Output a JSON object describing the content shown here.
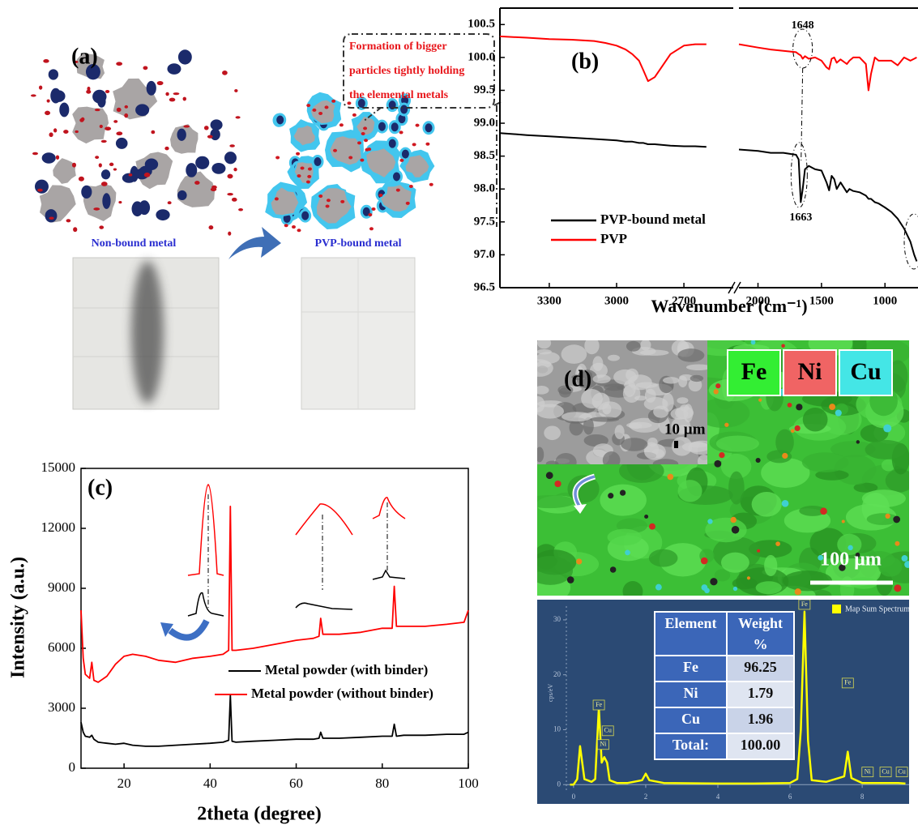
{
  "panel_a": {
    "label": "(a)",
    "callout": [
      "Formation of bigger",
      "particles tightly holding",
      "the elemental metals"
    ],
    "left_caption": "Non-bound metal",
    "right_caption": "PVP-bound metal"
  },
  "panel_d": {
    "label": "(d)",
    "elements": [
      "Fe",
      "Ni",
      "Cu"
    ],
    "scale_small": "10 µm",
    "scale_large": "100 µm"
  },
  "eds_table": {
    "columns": [
      "Element",
      [
        "Weight",
        "%"
      ]
    ],
    "rows": [
      [
        "Fe",
        "96.25"
      ],
      [
        "Ni",
        "1.79"
      ],
      [
        "Cu",
        "1.96"
      ],
      [
        "Total:",
        "100.00"
      ]
    ]
  },
  "chart_data": [
    {
      "type": "line",
      "panel_label": "(b)",
      "x_label": "Wavenumber (cm⁻¹)",
      "x_segments": [
        {
          "xlim": [
            3520,
            2480
          ],
          "xticks": [
            3300,
            3000,
            2700
          ]
        },
        {
          "xlim": [
            2150,
            740
          ],
          "xticks": [
            2000,
            1500,
            1000
          ]
        }
      ],
      "ylim": [
        96.5,
        100.75
      ],
      "yticks": [
        96.5,
        {
          "value": 97,
          "label": "97.0"
        },
        97.5,
        {
          "value": 98,
          "label": "98.0"
        },
        98.5,
        {
          "value": 99,
          "label": "99.0"
        },
        99.5,
        {
          "value": 100,
          "label": "100.0"
        },
        100.5
      ],
      "x": [
        3520,
        3400,
        3300,
        3200,
        3100,
        3050,
        3000,
        2960,
        2930,
        2900,
        2880,
        2860,
        2830,
        2800,
        2760,
        2700,
        2650,
        2600,
        2400,
        2150,
        2000,
        1900,
        1800,
        1700,
        1680,
        1663,
        1648,
        1630,
        1600,
        1550,
        1500,
        1460,
        1440,
        1420,
        1400,
        1380,
        1350,
        1300,
        1280,
        1250,
        1200,
        1150,
        1130,
        1110,
        1080,
        1050,
        1000,
        950,
        900,
        850,
        800,
        770,
        750
      ],
      "series": [
        {
          "name": "PVP-bound metal",
          "color": "#000000",
          "values": [
            98.85,
            98.82,
            98.8,
            98.78,
            98.76,
            98.75,
            98.74,
            98.72,
            98.72,
            98.7,
            98.7,
            98.68,
            98.68,
            98.67,
            98.66,
            98.65,
            98.65,
            98.64,
            null,
            98.6,
            98.58,
            98.55,
            98.55,
            98.52,
            98.45,
            97.8,
            98.0,
            98.3,
            98.35,
            98.3,
            98.28,
            98.1,
            97.98,
            98.2,
            98.15,
            98.0,
            98.1,
            97.95,
            98.0,
            97.97,
            97.95,
            97.9,
            97.85,
            97.85,
            97.8,
            97.78,
            97.72,
            97.65,
            97.55,
            97.4,
            97.2,
            97.0,
            96.9
          ]
        },
        {
          "name": "PVP",
          "color": "#ff0000",
          "values": [
            100.32,
            100.3,
            100.28,
            100.27,
            100.25,
            100.22,
            100.18,
            100.12,
            100.05,
            99.95,
            99.8,
            99.64,
            99.7,
            99.85,
            100.05,
            100.18,
            100.2,
            100.2,
            null,
            100.2,
            100.15,
            100.12,
            100.1,
            100.08,
            100.05,
            100.03,
            99.98,
            100.02,
            99.98,
            100.0,
            99.95,
            99.85,
            99.82,
            99.98,
            100.0,
            99.92,
            99.97,
            99.9,
            99.95,
            100.0,
            100.0,
            99.9,
            99.5,
            99.75,
            100.0,
            99.95,
            99.95,
            99.95,
            99.88,
            100.0,
            99.95,
            99.98,
            100.0
          ]
        }
      ],
      "legend": "lower left",
      "annotations": [
        {
          "text": "1648",
          "x": 1648
        },
        {
          "text": "1663",
          "x": 1663
        }
      ]
    },
    {
      "type": "line",
      "panel_label": "(c)",
      "x_label": "2theta (degree)",
      "y_label": "Intensity (a.u.)",
      "xlim": [
        10,
        100
      ],
      "ylim": [
        0,
        15000
      ],
      "xticks": [
        20,
        40,
        60,
        80,
        100
      ],
      "yticks": [
        0,
        3000,
        6000,
        9000,
        12000,
        15000
      ],
      "x": [
        10,
        10.5,
        11,
        12,
        12.5,
        13,
        14,
        16,
        18,
        20,
        22,
        25,
        28,
        32,
        36,
        40,
        43,
        44.3,
        44.7,
        45.1,
        46,
        50,
        55,
        60,
        64,
        65.3,
        65.7,
        66.2,
        70,
        75,
        80,
        82.3,
        82.8,
        83.3,
        85,
        90,
        95,
        99,
        100
      ],
      "series": [
        {
          "name": "Metal powder (with binder)",
          "color": "#000000",
          "values": [
            2300,
            1800,
            1600,
            1550,
            1650,
            1450,
            1300,
            1250,
            1200,
            1250,
            1150,
            1100,
            1100,
            1150,
            1200,
            1250,
            1300,
            1400,
            3650,
            1350,
            1300,
            1350,
            1400,
            1450,
            1450,
            1500,
            1800,
            1500,
            1500,
            1550,
            1600,
            1600,
            2200,
            1600,
            1650,
            1650,
            1700,
            1700,
            1800
          ]
        },
        {
          "name": "Metal powder (without binder)",
          "color": "#ff0000",
          "values": [
            7900,
            5500,
            4700,
            4500,
            5300,
            4400,
            4300,
            4600,
            5200,
            5600,
            5700,
            5600,
            5400,
            5300,
            5500,
            5600,
            5700,
            5900,
            13100,
            5900,
            5900,
            6000,
            6200,
            6400,
            6500,
            6600,
            7500,
            6700,
            6700,
            6800,
            7000,
            7000,
            9100,
            7100,
            7100,
            7100,
            7200,
            7300,
            7900
          ]
        }
      ],
      "legend": "center right"
    },
    {
      "type": "line",
      "y_label": "cps/eV",
      "xlim": [
        -0.2,
        9.3
      ],
      "ylim": [
        -1,
        32.5
      ],
      "xticks": [
        0,
        2,
        4,
        6,
        8
      ],
      "yticks": [
        0,
        10,
        20,
        30
      ],
      "x": [
        -0.1,
        0,
        0.1,
        0.18,
        0.3,
        0.5,
        0.6,
        0.7,
        0.78,
        0.85,
        0.93,
        1.0,
        1.2,
        1.5,
        1.9,
        2.0,
        2.1,
        2.5,
        4,
        5,
        6,
        6.2,
        6.3,
        6.4,
        6.5,
        6.6,
        7.0,
        7.5,
        7.6,
        7.7,
        8.0,
        8.5,
        9.0,
        9.2
      ],
      "series": [
        {
          "name": "Map Sum Spectrum",
          "color": "#ffff00",
          "values": [
            0,
            0,
            1,
            7,
            1,
            0.5,
            1,
            14,
            4,
            5,
            4,
            0.8,
            0.3,
            0.3,
            0.8,
            2,
            0.8,
            0.3,
            0.2,
            0.2,
            0.3,
            1,
            10,
            31.5,
            8,
            0.8,
            0.5,
            1.5,
            6,
            1.2,
            0.3,
            0.3,
            0.3,
            0.2
          ]
        }
      ],
      "legend": "upper right",
      "peak_labels": [
        {
          "text": "Fe",
          "x": 0.7,
          "y": 14.5
        },
        {
          "text": "Cu",
          "x": 0.95,
          "y": 9.8
        },
        {
          "text": "Ni",
          "x": 0.82,
          "y": 7.3
        },
        {
          "text": "Fe",
          "x": 6.4,
          "y": 32.8
        },
        {
          "text": "Fe",
          "x": 7.6,
          "y": 18.5
        },
        {
          "text": "Ni",
          "x": 8.15,
          "y": 2.3
        },
        {
          "text": "Cu",
          "x": 8.65,
          "y": 2.3
        },
        {
          "text": "Cu",
          "x": 9.1,
          "y": 2.3
        }
      ]
    }
  ]
}
